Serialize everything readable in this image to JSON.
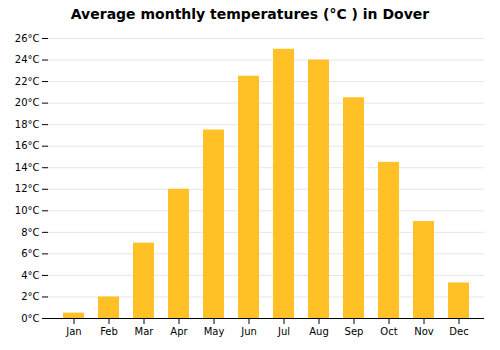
{
  "chart_data": {
    "type": "bar",
    "title": "Average monthly temperatures (°C ) in Dover",
    "categories": [
      "Jan",
      "Feb",
      "Mar",
      "Apr",
      "May",
      "Jun",
      "Jul",
      "Aug",
      "Sep",
      "Oct",
      "Nov",
      "Dec"
    ],
    "values": [
      0.5,
      2.0,
      7.0,
      12.0,
      17.5,
      22.5,
      25.0,
      24.0,
      20.5,
      14.5,
      9.0,
      3.3
    ],
    "color": "#FFC125",
    "ylim": [
      0,
      26
    ],
    "yticks": [
      {
        "value": 0,
        "label": "0°C"
      },
      {
        "value": 2,
        "label": "2°C"
      },
      {
        "value": 4,
        "label": "4°C"
      },
      {
        "value": 6,
        "label": "6°C"
      },
      {
        "value": 8,
        "label": "8°C"
      },
      {
        "value": 10,
        "label": "10°C"
      },
      {
        "value": 12,
        "label": "12°C"
      },
      {
        "value": 14,
        "label": "14°C"
      },
      {
        "value": 16,
        "label": "16°C"
      },
      {
        "value": 18,
        "label": "18°C"
      },
      {
        "value": 20,
        "label": "20°C"
      },
      {
        "value": 22,
        "label": "22°C"
      },
      {
        "value": 24,
        "label": "24°C"
      },
      {
        "value": 26,
        "label": "26°C"
      }
    ],
    "grid": true
  }
}
